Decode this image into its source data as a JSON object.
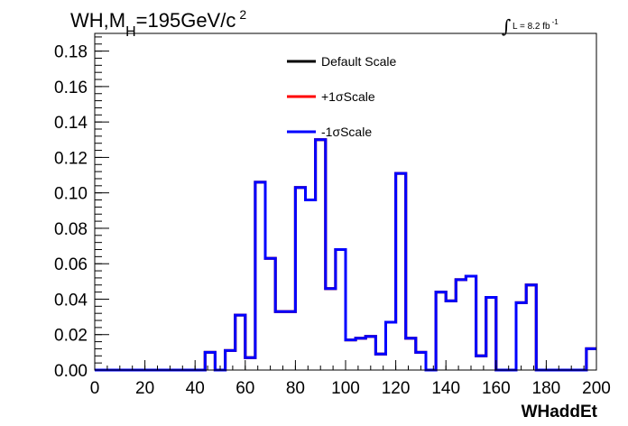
{
  "chart_data": {
    "type": "line",
    "step": true,
    "title": {
      "main": "WH,M",
      "sub": "H",
      "rest": "=195GeV/c",
      "sup": "2"
    },
    "luminosity": {
      "integral_sign": "∫",
      "text": "L = 8.2 fb",
      "sup": "-1"
    },
    "xlabel": "WHaddEt",
    "ylabel": "",
    "xlim": [
      0,
      200
    ],
    "ylim": [
      0,
      0.19
    ],
    "xticks": [
      0,
      20,
      40,
      60,
      80,
      100,
      120,
      140,
      160,
      180,
      200
    ],
    "xtick_labels": [
      "0",
      "20",
      "40",
      "60",
      "80",
      "100",
      "120",
      "140",
      "160",
      "180",
      "200"
    ],
    "yticks": [
      0,
      0.02,
      0.04,
      0.06,
      0.08,
      0.1,
      0.12,
      0.14,
      0.16,
      0.18
    ],
    "ytick_labels": [
      "0.00",
      "0.02",
      "0.04",
      "0.06",
      "0.08",
      "0.10",
      "0.12",
      "0.14",
      "0.16",
      "0.18"
    ],
    "bin_edges": [
      0,
      4,
      8,
      12,
      16,
      20,
      24,
      28,
      32,
      36,
      40,
      44,
      48,
      52,
      56,
      60,
      64,
      68,
      72,
      76,
      80,
      84,
      88,
      92,
      96,
      100,
      104,
      108,
      112,
      116,
      120,
      124,
      128,
      132,
      136,
      140,
      144,
      148,
      152,
      156,
      160,
      164,
      168,
      172,
      176,
      180,
      184,
      188,
      192,
      196,
      200
    ],
    "series": [
      {
        "name": "Default Scale",
        "color": "#000000",
        "values": [
          0,
          0,
          0,
          0,
          0,
          0,
          0,
          0,
          0,
          0,
          0,
          0.01,
          0,
          0.011,
          0.031,
          0.007,
          0.106,
          0.063,
          0.033,
          0.033,
          0.103,
          0.096,
          0.13,
          0.046,
          0.068,
          0.017,
          0.018,
          0.019,
          0.009,
          0.027,
          0.111,
          0.018,
          0.01,
          0,
          0.044,
          0.039,
          0.051,
          0.053,
          0.008,
          0.041,
          0,
          0,
          0.038,
          0.048,
          0,
          0,
          0,
          0,
          0,
          0.012
        ]
      },
      {
        "name": "+1σScale",
        "color": "#ff0000",
        "values": [
          0,
          0,
          0,
          0,
          0,
          0,
          0,
          0,
          0,
          0,
          0,
          0.01,
          0,
          0.011,
          0.031,
          0.007,
          0.106,
          0.063,
          0.033,
          0.033,
          0.103,
          0.096,
          0.13,
          0.046,
          0.068,
          0.017,
          0.018,
          0.019,
          0.009,
          0.027,
          0.111,
          0.018,
          0.01,
          0,
          0.044,
          0.039,
          0.051,
          0.053,
          0.008,
          0.041,
          0,
          0,
          0.038,
          0.048,
          0,
          0,
          0,
          0,
          0,
          0.012
        ]
      },
      {
        "name": "-1σScale",
        "color": "#0000ff",
        "values": [
          0,
          0,
          0,
          0,
          0,
          0,
          0,
          0,
          0,
          0,
          0,
          0.01,
          0,
          0.011,
          0.031,
          0.007,
          0.106,
          0.063,
          0.033,
          0.033,
          0.103,
          0.096,
          0.13,
          0.046,
          0.068,
          0.017,
          0.018,
          0.019,
          0.009,
          0.027,
          0.111,
          0.018,
          0.01,
          0,
          0.044,
          0.039,
          0.051,
          0.053,
          0.008,
          0.041,
          0,
          0,
          0.038,
          0.048,
          0,
          0,
          0,
          0,
          0,
          0.012
        ]
      }
    ],
    "legend_position": "top-center",
    "grid": false
  }
}
